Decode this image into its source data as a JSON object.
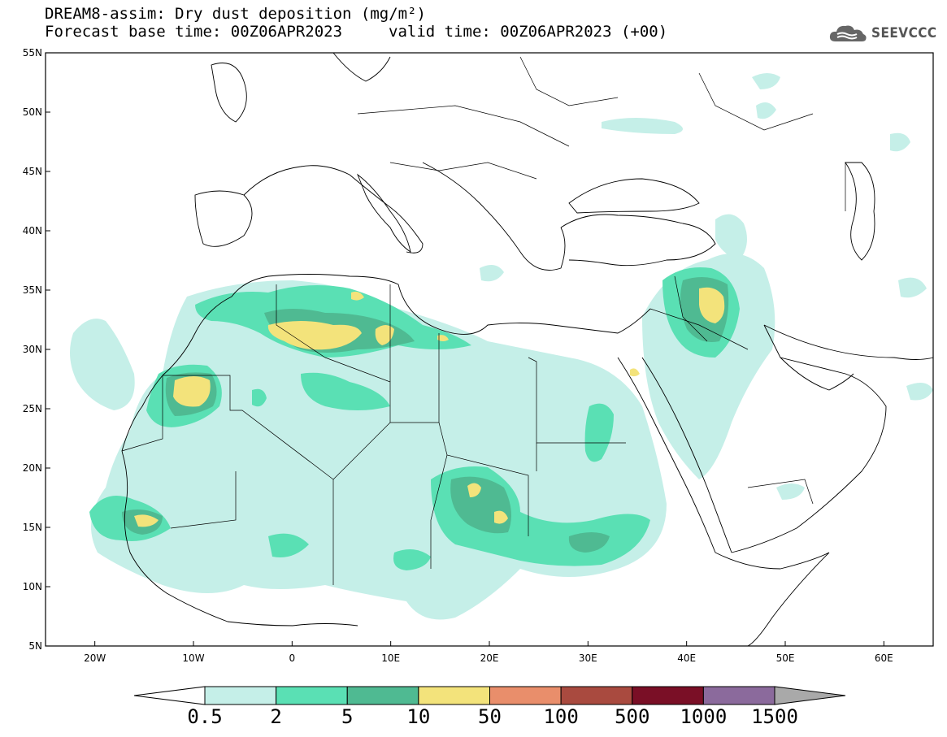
{
  "title": {
    "line1": "DREAM8-assim: Dry dust deposition (mg/m²)",
    "line2_left": "Forecast base time: 00Z06APR2023",
    "line2_right": "valid time: 00Z06APR2023 (+00)"
  },
  "logo": {
    "text": "SEEVCCC",
    "icon": "cloud-icon"
  },
  "axes": {
    "lat_labels": [
      "55N",
      "50N",
      "45N",
      "40N",
      "35N",
      "30N",
      "25N",
      "20N",
      "15N",
      "10N",
      "5N"
    ],
    "lon_labels": [
      "20W",
      "10W",
      "0",
      "10E",
      "20E",
      "30E",
      "40E",
      "50E",
      "60E"
    ],
    "lat_range": [
      5,
      55
    ],
    "lon_range": [
      -25,
      65
    ]
  },
  "colorbar": {
    "labels": [
      "0.5",
      "2",
      "5",
      "10",
      "50",
      "100",
      "500",
      "1000",
      "1500"
    ],
    "colors": [
      "#c5efe8",
      "#5ae0b4",
      "#4fba92",
      "#f3e37b",
      "#e98e6b",
      "#a94a3f",
      "#7a0f26",
      "#8b6a9c"
    ],
    "end_colors": {
      "low": "#ffffff",
      "high": "#a9a9a9"
    }
  }
}
